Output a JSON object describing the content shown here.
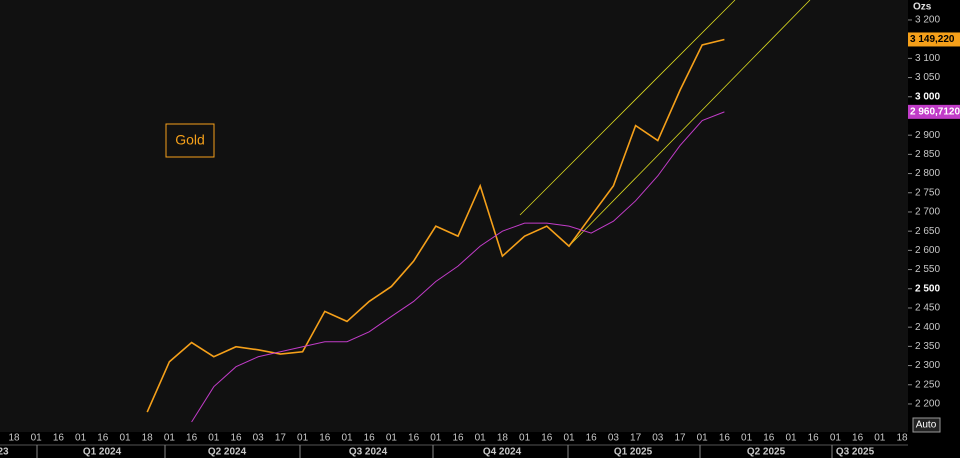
{
  "chart_data": {
    "type": "line",
    "title": "Gold",
    "y_label": "Ozs",
    "categories": [
      "18",
      "01",
      "16",
      "01",
      "16",
      "01",
      "18",
      "01",
      "16",
      "01",
      "16",
      "03",
      "17",
      "01",
      "16",
      "01",
      "16",
      "01",
      "16",
      "01",
      "16",
      "01",
      "18",
      "01",
      "16",
      "01",
      "16",
      "03",
      "17",
      "03",
      "17",
      "01",
      "16",
      "01",
      "16",
      "01",
      "16",
      "01",
      "16",
      "01",
      "18"
    ],
    "quarters": [
      "23",
      "Q1 2024",
      "Q2 2024",
      "Q3 2024",
      "Q4 2024",
      "Q1 2025",
      "Q2 2025",
      "Q3 2025"
    ],
    "series": [
      {
        "color": "#f5a01a",
        "values": [
          null,
          null,
          null,
          null,
          null,
          null,
          2179,
          2310,
          2360,
          2323,
          2349,
          2341,
          2330,
          2336,
          2441,
          2415,
          2467,
          2506,
          2572,
          2663,
          2637,
          2768,
          2585,
          2637,
          2663,
          2611,
          2690,
          2768,
          2925,
          2886,
          3017,
          3135,
          3149.22,
          null,
          null,
          null,
          null,
          null,
          null,
          null,
          null
        ],
        "value_label": "3 149,220"
      },
      {
        "color": "#c13cc8",
        "values": [
          null,
          null,
          null,
          null,
          null,
          null,
          null,
          null,
          2153,
          2245,
          2297,
          2323,
          2336,
          2349,
          2362,
          2362,
          2388,
          2428,
          2467,
          2519,
          2559,
          2611,
          2650,
          2671,
          2671,
          2663,
          2645,
          2676,
          2729,
          2794,
          2873,
          2938,
          2960.712,
          null,
          null,
          null,
          null,
          null,
          null,
          null,
          null
        ],
        "value_label": "2 960,7120"
      }
    ],
    "ylim": [
      2127,
      3252
    ],
    "yticks": [
      {
        "value": 2200,
        "label": "2 200"
      },
      {
        "value": 2250,
        "label": "2 250"
      },
      {
        "value": 2300,
        "label": "2 300"
      },
      {
        "value": 2350,
        "label": "2 350"
      },
      {
        "value": 2400,
        "label": "2 400"
      },
      {
        "value": 2450,
        "label": "2 450"
      },
      {
        "value": 2500,
        "label": "2 500"
      },
      {
        "value": 2550,
        "label": "2 550"
      },
      {
        "value": 2600,
        "label": "2 600"
      },
      {
        "value": 2650,
        "label": "2 650"
      },
      {
        "value": 2700,
        "label": "2 700"
      },
      {
        "value": 2750,
        "label": "2 750"
      },
      {
        "value": 2800,
        "label": "2 800"
      },
      {
        "value": 2850,
        "label": "2 850"
      },
      {
        "value": 2900,
        "label": "2 900"
      },
      {
        "value": 2950,
        "label": "2 950"
      },
      {
        "value": 3000,
        "label": "3 000"
      },
      {
        "value": 3050,
        "label": "3 050"
      },
      {
        "value": 3100,
        "label": "3 100"
      },
      {
        "value": 3150,
        "label": "3 150"
      },
      {
        "value": 3200,
        "label": "3 200"
      }
    ],
    "button": "Auto"
  }
}
